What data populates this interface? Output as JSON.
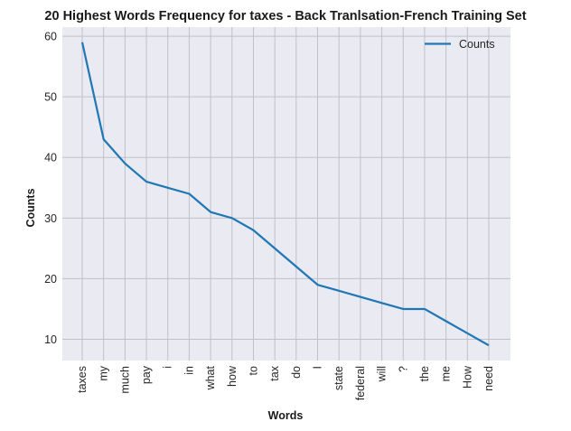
{
  "chart_data": {
    "type": "line",
    "title": "20 Highest Words Frequency for taxes - Back Tranlsation-French Training Set",
    "xlabel": "Words",
    "ylabel": "Counts",
    "categories": [
      "taxes",
      "my",
      "much",
      "pay",
      "i",
      "in",
      "what",
      "how",
      "to",
      "tax",
      "do",
      "I",
      "state",
      "federal",
      "will",
      "?",
      "the",
      "me",
      "How",
      "need"
    ],
    "series": [
      {
        "name": "Counts",
        "values": [
          59,
          43,
          39,
          36,
          35,
          34,
          31,
          30,
          28,
          25,
          22,
          19,
          18,
          17,
          16,
          15,
          15,
          13,
          11,
          9
        ]
      }
    ],
    "ylim": [
      6.5,
      61.5
    ],
    "yticks": [
      10,
      20,
      30,
      40,
      50,
      60
    ],
    "grid": true,
    "legend": "top-right",
    "colors": {
      "line": "#1f77b4",
      "plot_bg": "#eaeaf2",
      "grid": "#c0c0c8"
    }
  }
}
